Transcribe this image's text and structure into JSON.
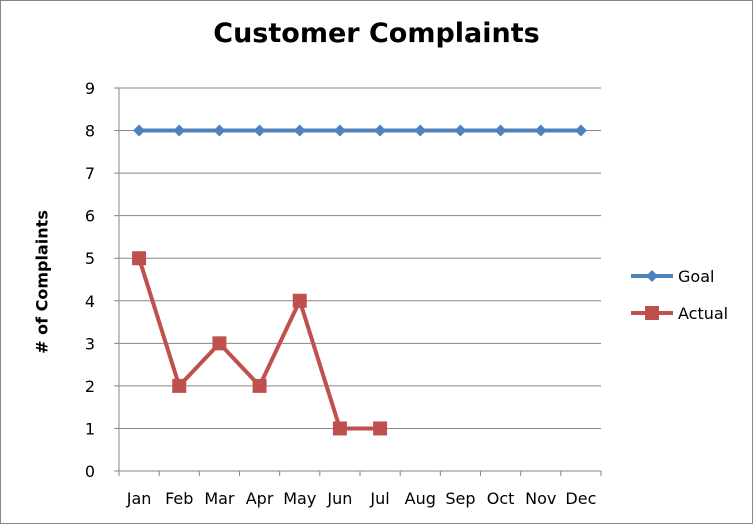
{
  "chart_data": {
    "type": "line",
    "title": "Customer Complaints",
    "xlabel": "",
    "ylabel": "# of Complaints",
    "categories": [
      "Jan",
      "Feb",
      "Mar",
      "Apr",
      "May",
      "Jun",
      "Jul",
      "Aug",
      "Sep",
      "Oct",
      "Nov",
      "Dec"
    ],
    "ylim": [
      0,
      9
    ],
    "yticks": [
      0,
      1,
      2,
      3,
      4,
      5,
      6,
      7,
      8,
      9
    ],
    "grid": true,
    "legend": "right",
    "series": [
      {
        "name": "Goal",
        "values": [
          8,
          8,
          8,
          8,
          8,
          8,
          8,
          8,
          8,
          8,
          8,
          8
        ],
        "color": "#4F81BD",
        "marker": "diamond"
      },
      {
        "name": "Actual",
        "values": [
          5,
          2,
          3,
          2,
          4,
          1,
          1,
          null,
          null,
          null,
          null,
          null
        ],
        "color": "#C0504D",
        "marker": "square"
      }
    ]
  }
}
